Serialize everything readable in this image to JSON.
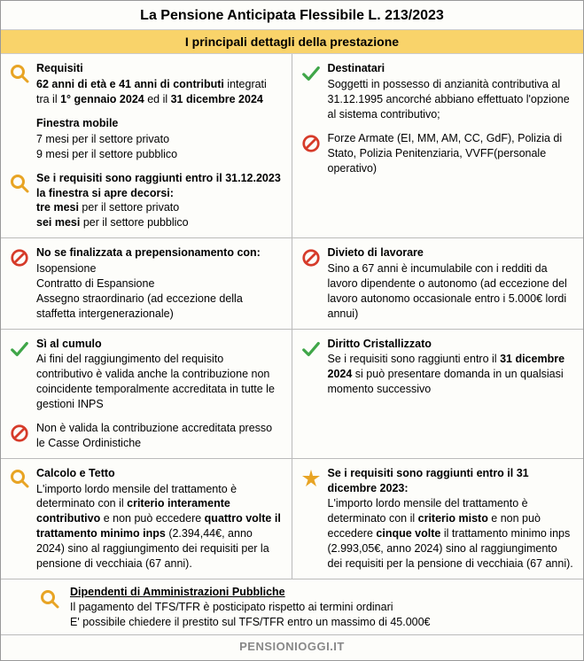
{
  "colors": {
    "accent_yellow": "#f9d36a",
    "icon_orange": "#e8a424",
    "icon_green": "#3fa648",
    "icon_red": "#d63b2a",
    "icon_star": "#e8a424",
    "footer_text": "#888888"
  },
  "title": "La Pensione Anticipata Flessibile L. 213/2023",
  "subtitle": "I principali dettagli della prestazione",
  "rows": [
    {
      "left": [
        {
          "icon": "magnify",
          "heading": "Requisiti",
          "html": "<b>62 anni di età e 41 anni di contributi</b> integrati tra il <b>1° gennaio 2024</b> ed il <b>31 dicembre 2024</b>"
        },
        {
          "icon": "none",
          "heading": "Finestra mobile",
          "html": "7 mesi per il settore privato<br>9 mesi per il settore pubblico"
        },
        {
          "icon": "magnify",
          "heading": "",
          "html": "<b>Se i requisiti sono raggiunti entro il 31.12.2023 la finestra si apre decorsi:</b><br><b>tre mesi</b> per il settore privato<br><b>sei mesi</b> per il settore pubblico"
        }
      ],
      "right": [
        {
          "icon": "check",
          "heading": "Destinatari",
          "html": "Soggetti in possesso di anzianità contributiva al 31.12.1995 ancorché abbiano effettuato l'opzione al sistema contributivo;"
        },
        {
          "icon": "forbid",
          "heading": "",
          "html": "Forze Armate (EI, MM, AM, CC, GdF), Polizia di Stato, Polizia Penitenziaria, VVFF(personale operativo)"
        }
      ]
    },
    {
      "left": [
        {
          "icon": "forbid",
          "heading": "No se finalizzata a prepensionamento con:",
          "html": "Isopensione<br>Contratto di Espansione<br>Assegno straordinario (ad eccezione della staffetta intergenerazionale)"
        }
      ],
      "right": [
        {
          "icon": "forbid",
          "heading": "Divieto di lavorare",
          "html": "Sino a 67 anni è incumulabile con i redditi da lavoro dipendente o autonomo (ad eccezione del lavoro autonomo occasionale entro i 5.000€ lordi annui)"
        }
      ]
    },
    {
      "left": [
        {
          "icon": "check",
          "heading": "Sì al cumulo",
          "html": "Ai fini del raggiungimento del requisito contributivo è valida anche la contribuzione non coincidente temporalmente accreditata in tutte le gestioni INPS"
        },
        {
          "icon": "forbid",
          "heading": "",
          "html": "Non è valida la contribuzione accreditata presso le Casse Ordinistiche"
        }
      ],
      "right": [
        {
          "icon": "check",
          "heading": "Diritto Cristallizzato",
          "html": "Se i requisiti sono raggiunti entro il <b>31 dicembre 2024</b> si può presentare domanda in un qualsiasi momento successivo"
        }
      ]
    },
    {
      "left": [
        {
          "icon": "magnify",
          "heading": "Calcolo e Tetto",
          "html": "L'importo lordo mensile del trattamento è determinato con il <b>criterio interamente contributivo</b> e non può eccedere <b>quattro volte il trattamento minimo inps</b> (2.394,44€, anno 2024) sino al raggiungimento dei requisiti per la pensione di vecchiaia (67 anni)."
        }
      ],
      "right": [
        {
          "icon": "star",
          "heading": "Se i requisiti sono raggiunti entro il 31 dicembre 2023:",
          "html": "L'importo lordo mensile del trattamento è determinato con il <b>criterio misto</b> e non può eccedere <b>cinque volte</b> il trattamento minimo inps (2.993,05€, anno 2024) sino al raggiungimento dei requisiti per la pensione di vecchiaia (67 anni)."
        }
      ]
    }
  ],
  "footer": {
    "icon": "magnify",
    "heading": "Dipendenti di Amministrazioni Pubbliche",
    "lines": [
      "Il pagamento del TFS/TFR è posticipato rispetto ai termini ordinari",
      "E' possibile chiedere il prestito sul TFS/TFR entro un massimo di 45.000€"
    ]
  },
  "site": "PENSIONIOGGI.IT"
}
